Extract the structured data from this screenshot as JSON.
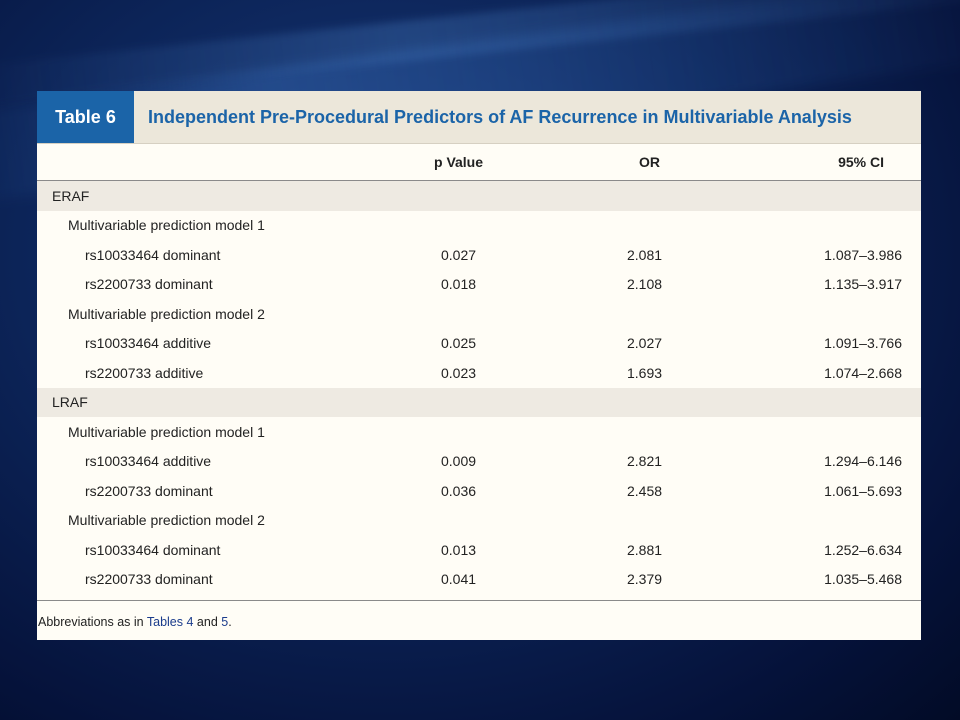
{
  "table": {
    "label": "Table 6",
    "title": "Independent Pre-Procedural Predictors of AF Recurrence in Multivariable Analysis",
    "columns": [
      "p Value",
      "OR",
      "95% CI"
    ],
    "rows": [
      {
        "type": "group",
        "label": "ERAF"
      },
      {
        "type": "model",
        "label": "Multivariable prediction model 1"
      },
      {
        "type": "data",
        "label": "rs10033464 dominant",
        "p": "0.027",
        "or": "2.081",
        "ci": "1.087–3.986"
      },
      {
        "type": "data",
        "label": "rs2200733 dominant",
        "p": "0.018",
        "or": "2.108",
        "ci": "1.135–3.917"
      },
      {
        "type": "model",
        "label": "Multivariable prediction model 2"
      },
      {
        "type": "data",
        "label": "rs10033464 additive",
        "p": "0.025",
        "or": "2.027",
        "ci": "1.091–3.766"
      },
      {
        "type": "data",
        "label": "rs2200733 additive",
        "p": "0.023",
        "or": "1.693",
        "ci": "1.074–2.668"
      },
      {
        "type": "group",
        "label": "LRAF"
      },
      {
        "type": "model",
        "label": "Multivariable prediction model 1"
      },
      {
        "type": "data",
        "label": "rs10033464 additive",
        "p": "0.009",
        "or": "2.821",
        "ci": "1.294–6.146"
      },
      {
        "type": "data",
        "label": "rs2200733 dominant",
        "p": "0.036",
        "or": "2.458",
        "ci": "1.061–5.693"
      },
      {
        "type": "model",
        "label": "Multivariable prediction model 2"
      },
      {
        "type": "data",
        "label": "rs10033464 dominant",
        "p": "0.013",
        "or": "2.881",
        "ci": "1.252–6.634"
      },
      {
        "type": "data",
        "label": "rs2200733 dominant",
        "p": "0.041",
        "or": "2.379",
        "ci": "1.035–5.468"
      }
    ],
    "footnote": {
      "prefix": "Abbreviations as in ",
      "link1": "Tables 4",
      "middle": " and ",
      "link2": "5",
      "suffix": "."
    }
  },
  "colors": {
    "accent": "#1b64a8",
    "header_bg": "#ece7da",
    "shade_bg": "#eeeae2",
    "table_bg": "#fffdf6"
  }
}
